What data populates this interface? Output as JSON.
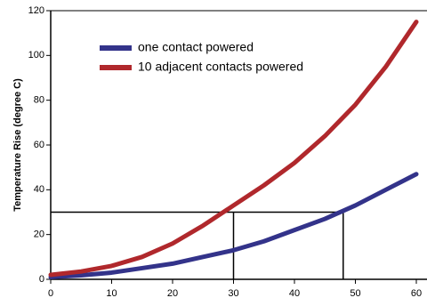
{
  "chart_data": {
    "type": "line",
    "y_label": "Temperature Rise (degree C)",
    "x": [
      0,
      5,
      10,
      15,
      20,
      25,
      30,
      35,
      40,
      45,
      50,
      55,
      60
    ],
    "series": [
      {
        "name": "one contact powered",
        "color": "#33338a",
        "values": [
          1,
          1.8,
          3,
          5,
          7,
          10,
          13,
          17,
          22,
          27,
          33,
          40,
          47
        ]
      },
      {
        "name": "10 adjacent contacts powered",
        "color": "#b0282c",
        "values": [
          2,
          3.5,
          6,
          10,
          16,
          24,
          33,
          42,
          52,
          64,
          78,
          95,
          115
        ]
      }
    ],
    "reference_lines": {
      "y": 30,
      "x": [
        30,
        48
      ]
    },
    "xlim": [
      0,
      60
    ],
    "xticks": [
      0,
      10,
      20,
      30,
      40,
      50,
      60
    ],
    "ylim": [
      0,
      120
    ],
    "yticks": [
      0,
      20,
      40,
      60,
      80,
      100,
      120
    ],
    "legend": "upper left",
    "grid": false
  }
}
